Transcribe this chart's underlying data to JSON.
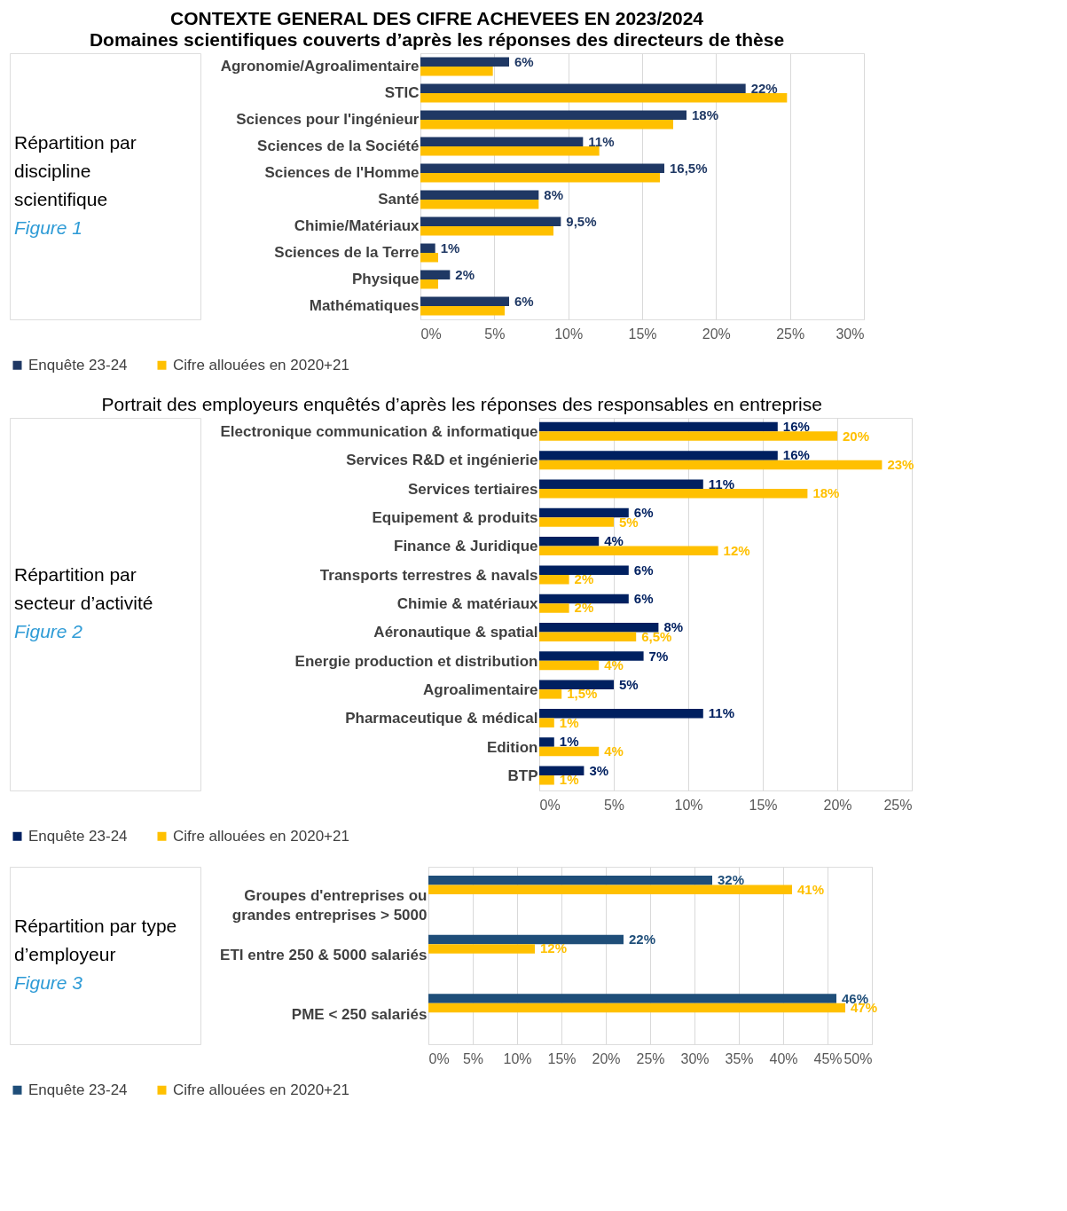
{
  "chart_data": [
    {
      "type": "bar",
      "orientation": "horizontal",
      "title": "CONTEXTE GENERAL DES CIFRE ACHEVEES EN 2023/2024",
      "subtitle": "Domaines scientifiques couverts d’après les réponses des directeurs de thèse",
      "annotations": [
        "Répartition par discipline scientifique",
        "Figure 1"
      ],
      "categories": [
        "Agronomie/Agroalimentaire",
        "STIC",
        "Sciences pour l'ingénieur",
        "Sciences de la Société",
        "Sciences de l'Homme",
        "Santé",
        "Chimie/Matériaux",
        "Sciences de la Terre",
        "Physique",
        "Mathématiques"
      ],
      "series": [
        {
          "name": "Enquête 23-24",
          "color": "#1f3864",
          "values": [
            6,
            22,
            18,
            11,
            16.5,
            8,
            9.5,
            1,
            2,
            6
          ],
          "value_labels": [
            "6%",
            "22%",
            "18%",
            "11%",
            "16,5%",
            "8%",
            "9,5%",
            "1%",
            "2%",
            "6%"
          ]
        },
        {
          "name": "Cifre allouées en 2020+21",
          "color": "#ffc000",
          "values": [
            4.9,
            24.8,
            17.1,
            12.1,
            16.2,
            8.0,
            9.0,
            1.2,
            1.2,
            5.7
          ]
        }
      ],
      "xlim": [
        0,
        30
      ],
      "xticks": [
        {
          "value": 0,
          "label": "0%"
        },
        {
          "value": 5,
          "label": "5%"
        },
        {
          "value": 10,
          "label": "10%"
        },
        {
          "value": 15,
          "label": "15%"
        },
        {
          "value": 20,
          "label": "20%"
        },
        {
          "value": 25,
          "label": "25%"
        },
        {
          "value": 30,
          "label": "30%"
        }
      ],
      "grid": "x",
      "legend": "bottom"
    },
    {
      "type": "bar",
      "orientation": "horizontal",
      "title": "Portrait des employeurs enquêtés d’après les réponses des responsables en entreprise",
      "annotations": [
        "Répartition par secteur d’activité",
        "Figure 2"
      ],
      "categories": [
        "Electronique communication & informatique",
        "Services R&D et ingénierie",
        "Services tertiaires",
        "Equipement & produits",
        "Finance & Juridique",
        "Transports terrestres & navals",
        "Chimie & matériaux",
        "Aéronautique & spatial",
        "Energie production et distribution",
        "Agroalimentaire",
        "Pharmaceutique & médical",
        "Edition",
        "BTP"
      ],
      "series": [
        {
          "name": "Enquête 23-24",
          "color": "#002060",
          "values": [
            16,
            16,
            11,
            6,
            4,
            6,
            6,
            8,
            7,
            5,
            11,
            1,
            3
          ],
          "value_labels": [
            "16%",
            "16%",
            "11%",
            "6%",
            "4%",
            "6%",
            "6%",
            "8%",
            "7%",
            "5%",
            "11%",
            "1%",
            "3%"
          ]
        },
        {
          "name": "Cifre allouées en 2020+21",
          "color": "#ffc000",
          "values": [
            20,
            23,
            18,
            5,
            12,
            2,
            2,
            6.5,
            4,
            1.5,
            1,
            4,
            1
          ],
          "value_labels": [
            "20%",
            "23%",
            "18%",
            "5%",
            "12%",
            "2%",
            "2%",
            "6,5%",
            "4%",
            "1,5%",
            "1%",
            "4%",
            "1%"
          ]
        }
      ],
      "xlim": [
        0,
        25
      ],
      "xticks": [
        {
          "value": 0,
          "label": "0%"
        },
        {
          "value": 5,
          "label": "5%"
        },
        {
          "value": 10,
          "label": "10%"
        },
        {
          "value": 15,
          "label": "15%"
        },
        {
          "value": 20,
          "label": "20%"
        },
        {
          "value": 25,
          "label": "25%"
        }
      ],
      "grid": "x",
      "legend": "bottom"
    },
    {
      "type": "bar",
      "orientation": "horizontal",
      "annotations": [
        "Répartition par type d’employeur",
        "Figure 3"
      ],
      "categories": [
        "Groupes d'entreprises ou grandes entreprises > 5000",
        "ETI entre 250 & 5000 salariés",
        "PME < 250 salariés"
      ],
      "series": [
        {
          "name": "Enquête 23-24",
          "color": "#1f4e79",
          "values": [
            32,
            22,
            46
          ],
          "value_labels": [
            "32%",
            "22%",
            "46%"
          ]
        },
        {
          "name": "Cifre allouées en 2020+21",
          "color": "#ffc000",
          "values": [
            41,
            12,
            47
          ],
          "value_labels": [
            "41%",
            "12%",
            "47%"
          ]
        }
      ],
      "xlim": [
        0,
        50
      ],
      "xticks": [
        {
          "value": 0,
          "label": "0%"
        },
        {
          "value": 5,
          "label": "5%"
        },
        {
          "value": 10,
          "label": "10%"
        },
        {
          "value": 15,
          "label": "15%"
        },
        {
          "value": 20,
          "label": "20%"
        },
        {
          "value": 25,
          "label": "25%"
        },
        {
          "value": 30,
          "label": "30%"
        },
        {
          "value": 35,
          "label": "35%"
        },
        {
          "value": 40,
          "label": "40%"
        },
        {
          "value": 45,
          "label": "45%"
        },
        {
          "value": 50,
          "label": "50%"
        }
      ],
      "grid": "x",
      "legend": "bottom"
    }
  ]
}
